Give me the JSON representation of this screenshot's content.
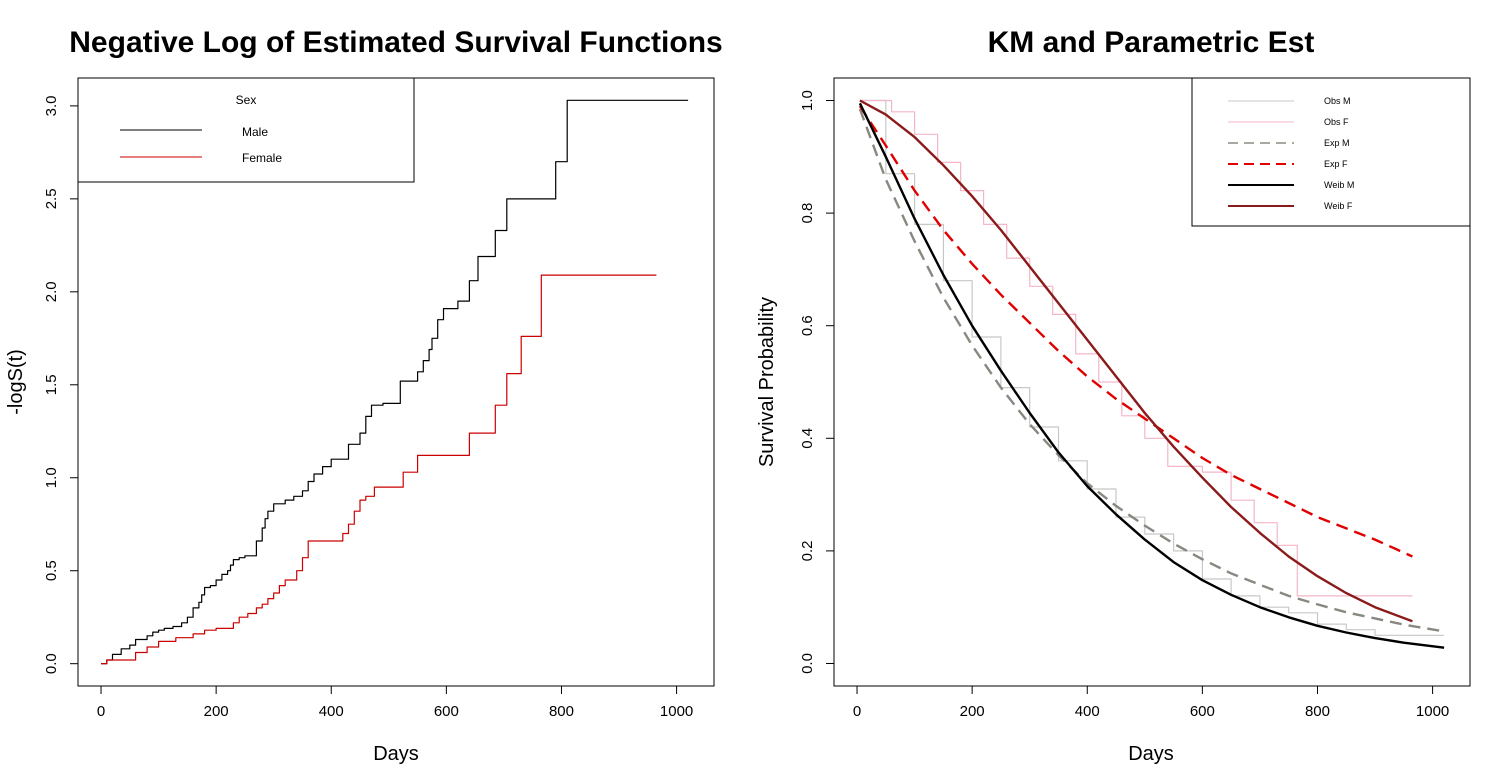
{
  "chart_data": [
    {
      "type": "line",
      "title": "Negative Log of Estimated Survival Functions",
      "xlabel": "Days",
      "ylabel": "-logS(t)",
      "xlim": [
        -40,
        1065
      ],
      "ylim": [
        -0.12,
        3.15
      ],
      "xticks": [
        0,
        200,
        400,
        600,
        800,
        1000
      ],
      "yticks": [
        0.0,
        0.5,
        1.0,
        1.5,
        2.0,
        2.5,
        3.0
      ],
      "xtick_labels": [
        "0",
        "200",
        "400",
        "600",
        "800",
        "1000"
      ],
      "ytick_labels": [
        "0.0",
        "0.5",
        "1.0",
        "1.5",
        "2.0",
        "2.5",
        "3.0"
      ],
      "step": true,
      "grid": false,
      "legend": {
        "title": "Sex",
        "position": "top-left",
        "entries": [
          {
            "label": "Male",
            "color": "#000000"
          },
          {
            "label": "Female",
            "color": "#cc0000"
          }
        ]
      },
      "series": [
        {
          "name": "Male",
          "color": "#000000",
          "x": [
            0,
            10,
            20,
            35,
            50,
            60,
            80,
            90,
            100,
            110,
            125,
            140,
            150,
            160,
            170,
            175,
            180,
            190,
            200,
            210,
            220,
            225,
            230,
            240,
            250,
            270,
            280,
            285,
            290,
            300,
            320,
            335,
            350,
            360,
            370,
            385,
            400,
            430,
            450,
            460,
            470,
            490,
            520,
            550,
            560,
            570,
            575,
            585,
            595,
            620,
            640,
            655,
            685,
            705,
            725,
            790,
            810,
            1020
          ],
          "y": [
            0.0,
            0.02,
            0.05,
            0.08,
            0.1,
            0.13,
            0.15,
            0.17,
            0.18,
            0.19,
            0.2,
            0.22,
            0.25,
            0.3,
            0.33,
            0.37,
            0.41,
            0.42,
            0.45,
            0.48,
            0.5,
            0.53,
            0.56,
            0.57,
            0.58,
            0.66,
            0.73,
            0.78,
            0.82,
            0.86,
            0.88,
            0.9,
            0.93,
            0.98,
            1.02,
            1.06,
            1.1,
            1.18,
            1.24,
            1.33,
            1.39,
            1.4,
            1.52,
            1.57,
            1.63,
            1.69,
            1.75,
            1.85,
            1.91,
            1.95,
            2.06,
            2.19,
            2.33,
            2.5,
            2.5,
            2.7,
            3.03,
            3.03
          ]
        },
        {
          "name": "Female",
          "color": "#cc0000",
          "x": [
            0,
            10,
            60,
            80,
            100,
            130,
            160,
            180,
            200,
            230,
            240,
            255,
            270,
            280,
            290,
            300,
            310,
            320,
            340,
            350,
            360,
            390,
            420,
            430,
            440,
            450,
            460,
            475,
            525,
            550,
            640,
            685,
            705,
            730,
            765,
            965
          ],
          "y": [
            0.0,
            0.02,
            0.06,
            0.09,
            0.12,
            0.14,
            0.16,
            0.18,
            0.19,
            0.22,
            0.25,
            0.27,
            0.3,
            0.32,
            0.35,
            0.38,
            0.42,
            0.45,
            0.5,
            0.57,
            0.66,
            0.66,
            0.7,
            0.75,
            0.82,
            0.88,
            0.9,
            0.95,
            1.03,
            1.12,
            1.24,
            1.39,
            1.56,
            1.76,
            2.09,
            2.09
          ]
        }
      ]
    },
    {
      "type": "line",
      "title": "KM and Parametric Est",
      "xlabel": "Days",
      "ylabel": "Survival Probability",
      "xlim": [
        -40,
        1065
      ],
      "ylim": [
        -0.04,
        1.04
      ],
      "xticks": [
        0,
        200,
        400,
        600,
        800,
        1000
      ],
      "yticks": [
        0.0,
        0.2,
        0.4,
        0.6,
        0.8,
        1.0
      ],
      "xtick_labels": [
        "0",
        "200",
        "400",
        "600",
        "800",
        "1000"
      ],
      "ytick_labels": [
        "0.0",
        "0.2",
        "0.4",
        "0.6",
        "0.8",
        "1.0"
      ],
      "grid": false,
      "legend": {
        "position": "top-right",
        "entries": [
          {
            "label": "Obs M",
            "color": "#c8c8c8",
            "style": "solid"
          },
          {
            "label": "Obs F",
            "color": "#f4b6c9",
            "style": "solid"
          },
          {
            "label": "Exp M",
            "color": "#a8a8a0",
            "style": "dashed"
          },
          {
            "label": "Exp F",
            "color": "#e00000",
            "style": "dashed"
          },
          {
            "label": "Weib M",
            "color": "#000000",
            "style": "solid"
          },
          {
            "label": "Weib F",
            "color": "#8b1a1a",
            "style": "solid"
          }
        ]
      },
      "series": [
        {
          "name": "Obs M",
          "color": "#c8c8c8",
          "style": "step",
          "x": [
            5,
            50,
            100,
            150,
            200,
            250,
            300,
            350,
            400,
            450,
            500,
            550,
            600,
            650,
            700,
            750,
            800,
            850,
            900,
            950,
            1020
          ],
          "y": [
            1.0,
            0.87,
            0.78,
            0.68,
            0.58,
            0.49,
            0.42,
            0.36,
            0.31,
            0.26,
            0.23,
            0.2,
            0.15,
            0.12,
            0.1,
            0.09,
            0.07,
            0.06,
            0.05,
            0.05,
            0.05
          ]
        },
        {
          "name": "Obs F",
          "color": "#f4b6c9",
          "style": "step",
          "x": [
            5,
            60,
            100,
            140,
            180,
            220,
            260,
            300,
            340,
            380,
            420,
            460,
            500,
            540,
            600,
            650,
            690,
            730,
            765,
            965
          ],
          "y": [
            1.0,
            0.98,
            0.94,
            0.89,
            0.84,
            0.78,
            0.72,
            0.67,
            0.62,
            0.55,
            0.5,
            0.44,
            0.4,
            0.35,
            0.34,
            0.29,
            0.25,
            0.21,
            0.12,
            0.12
          ]
        },
        {
          "name": "Exp M",
          "color": "#888880",
          "style": "dashed",
          "x": [
            5,
            50,
            100,
            150,
            200,
            250,
            300,
            350,
            400,
            450,
            500,
            550,
            600,
            650,
            700,
            750,
            800,
            850,
            900,
            950,
            1020
          ],
          "y": [
            0.985,
            0.86,
            0.75,
            0.65,
            0.565,
            0.49,
            0.425,
            0.37,
            0.32,
            0.28,
            0.245,
            0.213,
            0.185,
            0.16,
            0.14,
            0.12,
            0.105,
            0.091,
            0.08,
            0.069,
            0.057
          ]
        },
        {
          "name": "Exp F",
          "color": "#e00000",
          "style": "dashed",
          "x": [
            5,
            50,
            100,
            150,
            200,
            250,
            300,
            350,
            400,
            450,
            500,
            550,
            600,
            650,
            700,
            750,
            800,
            850,
            900,
            965
          ],
          "y": [
            0.99,
            0.92,
            0.84,
            0.77,
            0.71,
            0.655,
            0.605,
            0.555,
            0.51,
            0.47,
            0.435,
            0.4,
            0.365,
            0.335,
            0.31,
            0.285,
            0.26,
            0.24,
            0.22,
            0.19
          ]
        },
        {
          "name": "Weib M",
          "color": "#000000",
          "style": "solid",
          "x": [
            5,
            50,
            100,
            150,
            200,
            250,
            300,
            350,
            400,
            450,
            500,
            550,
            600,
            650,
            700,
            750,
            800,
            850,
            900,
            950,
            1020
          ],
          "y": [
            0.995,
            0.9,
            0.79,
            0.69,
            0.6,
            0.52,
            0.445,
            0.375,
            0.315,
            0.265,
            0.22,
            0.18,
            0.148,
            0.122,
            0.1,
            0.082,
            0.067,
            0.055,
            0.045,
            0.037,
            0.028
          ]
        },
        {
          "name": "Weib F",
          "color": "#8b1a1a",
          "style": "solid",
          "x": [
            5,
            50,
            100,
            150,
            200,
            250,
            300,
            350,
            400,
            450,
            500,
            550,
            600,
            650,
            700,
            750,
            800,
            850,
            900,
            965
          ],
          "y": [
            1.0,
            0.975,
            0.935,
            0.885,
            0.83,
            0.77,
            0.705,
            0.64,
            0.575,
            0.51,
            0.445,
            0.385,
            0.33,
            0.278,
            0.232,
            0.19,
            0.155,
            0.125,
            0.1,
            0.075
          ]
        }
      ]
    }
  ]
}
